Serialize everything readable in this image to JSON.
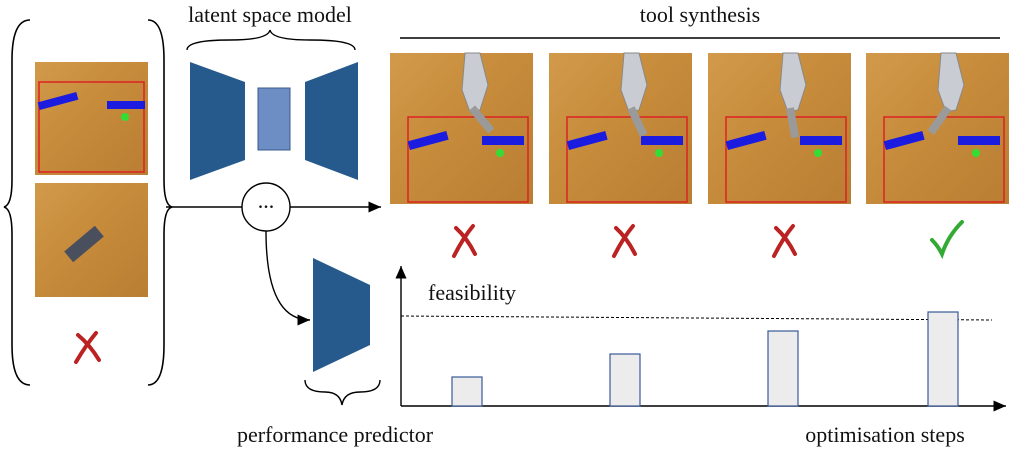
{
  "left_panel": {
    "ellipsis": "..."
  },
  "latent_space_model": {
    "label": "latent space model"
  },
  "performance_predictor": {
    "label": "performance predictor"
  },
  "tool_synthesis": {
    "label": "tool synthesis"
  },
  "feasibility_plot": {
    "threshold_label": "feasibility",
    "x_axis_label": "optimisation steps"
  }
}
